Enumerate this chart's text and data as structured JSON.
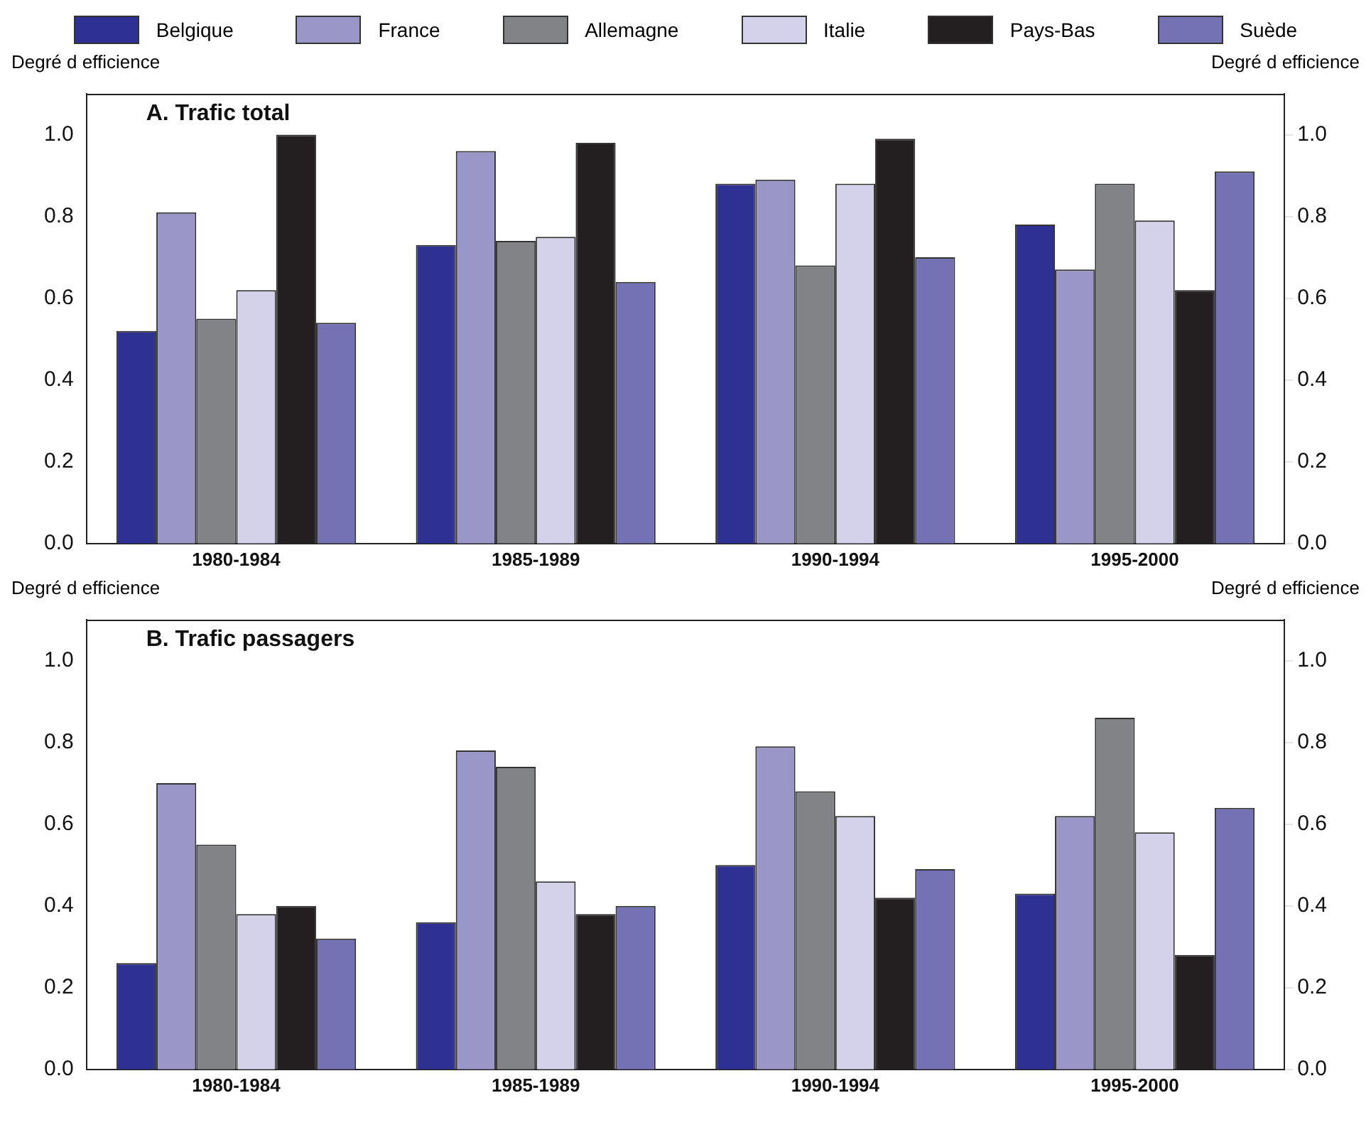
{
  "chart_data": [
    {
      "type": "bar",
      "title": "A. Trafic total",
      "ylabel": "Degré d efficience",
      "y2label": "Degré d efficience",
      "categories": [
        "1980-1984",
        "1985-1989",
        "1990-1994",
        "1995-2000"
      ],
      "series": [
        {
          "name": "Belgique",
          "color": "#2e3192",
          "values": [
            0.52,
            0.73,
            0.88,
            0.78
          ]
        },
        {
          "name": "France",
          "color": "#9a97c8",
          "values": [
            0.81,
            0.96,
            0.89,
            0.67
          ]
        },
        {
          "name": "Allemagne",
          "color": "#828387",
          "values": [
            0.55,
            0.74,
            0.68,
            0.88
          ]
        },
        {
          "name": "Italie",
          "color": "#d3d2ea",
          "values": [
            0.62,
            0.75,
            0.88,
            0.79
          ]
        },
        {
          "name": "Pays-Bas",
          "color": "#231f20",
          "values": [
            1.0,
            0.98,
            0.99,
            0.62
          ]
        },
        {
          "name": "Suède",
          "color": "#7571b5",
          "values": [
            0.54,
            0.64,
            0.7,
            0.91
          ]
        }
      ],
      "ylim": [
        0,
        1.1
      ],
      "yticks": [
        {
          "value": 0,
          "label": "0.0"
        },
        {
          "value": 0.2,
          "label": "0.2"
        },
        {
          "value": 0.4,
          "label": "0.4"
        },
        {
          "value": 0.6,
          "label": "0.6"
        },
        {
          "value": 0.8,
          "label": "0.8"
        },
        {
          "value": 1,
          "label": "1.0"
        }
      ],
      "y2lim": [
        0,
        1.1
      ],
      "y2ticks": [
        {
          "value": 0,
          "label": "0.0"
        },
        {
          "value": 0.2,
          "label": "0.2"
        },
        {
          "value": 0.4,
          "label": "0.4"
        },
        {
          "value": 0.6,
          "label": "0.6"
        },
        {
          "value": 0.8,
          "label": "0.8"
        },
        {
          "value": 1,
          "label": "1.0"
        }
      ],
      "grid": false,
      "legend": "top"
    },
    {
      "type": "bar",
      "title": "B. Trafic passagers",
      "ylabel": "Degré d efficience",
      "y2label": "Degré d efficience",
      "categories": [
        "1980-1984",
        "1985-1989",
        "1990-1994",
        "1995-2000"
      ],
      "series": [
        {
          "name": "Belgique",
          "color": "#2e3192",
          "values": [
            0.26,
            0.36,
            0.5,
            0.43
          ]
        },
        {
          "name": "France",
          "color": "#9a97c8",
          "values": [
            0.7,
            0.78,
            0.79,
            0.62
          ]
        },
        {
          "name": "Allemagne",
          "color": "#828387",
          "values": [
            0.55,
            0.74,
            0.68,
            0.86
          ]
        },
        {
          "name": "Italie",
          "color": "#d3d2ea",
          "values": [
            0.38,
            0.46,
            0.62,
            0.58
          ]
        },
        {
          "name": "Pays-Bas",
          "color": "#231f20",
          "values": [
            0.4,
            0.38,
            0.42,
            0.28
          ]
        },
        {
          "name": "Suède",
          "color": "#7571b5",
          "values": [
            0.32,
            0.4,
            0.49,
            0.64
          ]
        }
      ],
      "ylim": [
        0,
        1.1
      ],
      "yticks": [
        {
          "value": 0,
          "label": "0.0"
        },
        {
          "value": 0.2,
          "label": "0.2"
        },
        {
          "value": 0.4,
          "label": "0.4"
        },
        {
          "value": 0.6,
          "label": "0.6"
        },
        {
          "value": 0.8,
          "label": "0.8"
        },
        {
          "value": 1,
          "label": "1.0"
        }
      ],
      "y2lim": [
        0,
        1.1
      ],
      "y2ticks": [
        {
          "value": 0,
          "label": "0.0"
        },
        {
          "value": 0.2,
          "label": "0.2"
        },
        {
          "value": 0.4,
          "label": "0.4"
        },
        {
          "value": 0.6,
          "label": "0.6"
        },
        {
          "value": 0.8,
          "label": "0.8"
        },
        {
          "value": 1,
          "label": "1.0"
        }
      ],
      "grid": false,
      "legend": false
    }
  ]
}
